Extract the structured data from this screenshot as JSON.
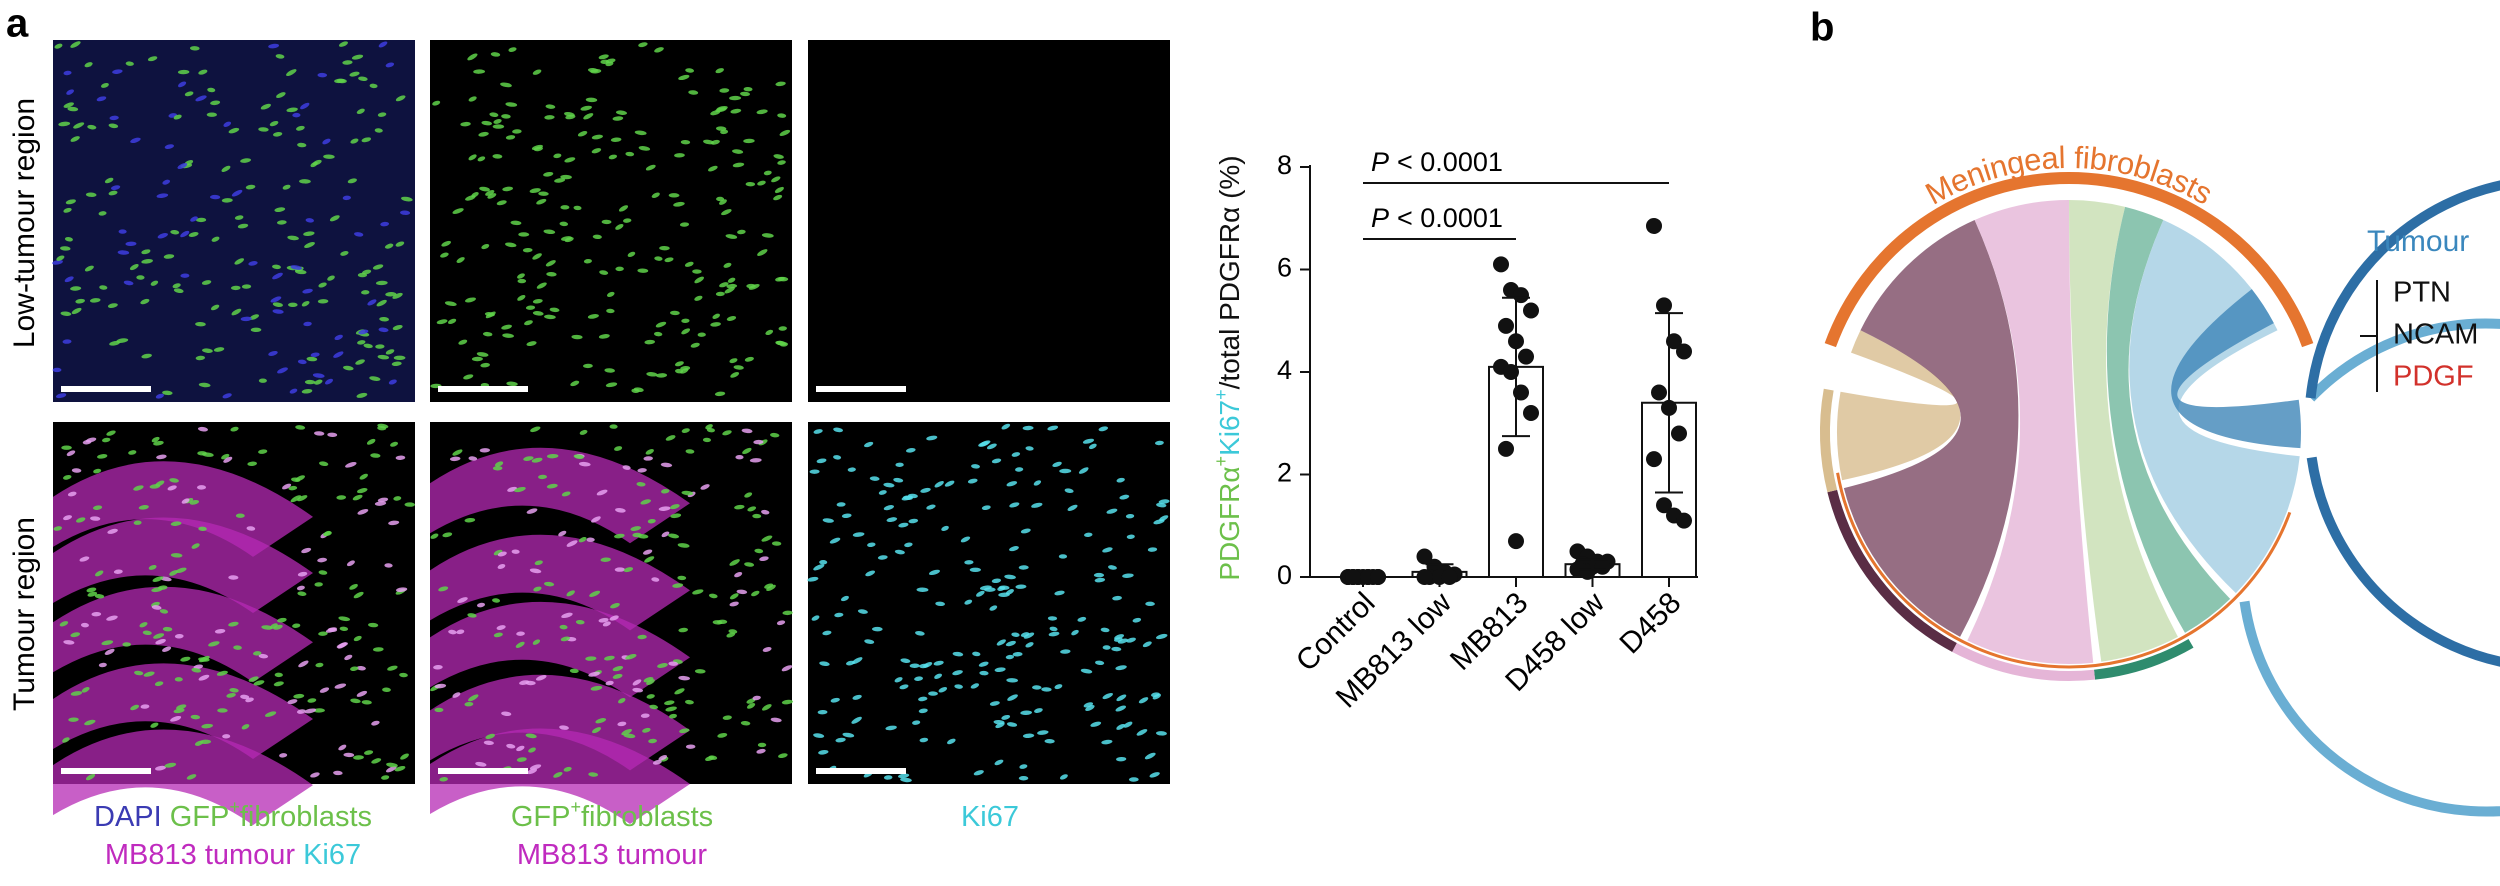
{
  "panel_a": {
    "label": "a",
    "row_labels": [
      "Low-tumour region",
      "Tumour region"
    ],
    "captions": [
      [
        [
          {
            "text": "DAPI",
            "color": "#3b3bb3"
          },
          {
            "text": "GFP",
            "color": "#6cc04a"
          },
          {
            "text": "+",
            "color": "#6cc04a",
            "sup": true
          },
          {
            "text": "fibroblasts",
            "color": "#6cc04a"
          }
        ],
        [
          {
            "text": "MB813 tumour",
            "color": "#c02bbf"
          },
          {
            "text": "Ki67",
            "color": "#3cc9d9"
          }
        ]
      ],
      [
        [
          {
            "text": "GFP",
            "color": "#6cc04a"
          },
          {
            "text": "+",
            "color": "#6cc04a",
            "sup": true
          },
          {
            "text": "fibroblasts",
            "color": "#6cc04a"
          }
        ],
        [
          {
            "text": "MB813 tumour",
            "color": "#c02bbf"
          }
        ]
      ],
      [
        [
          {
            "text": "Ki67",
            "color": "#3cc9d9"
          }
        ]
      ]
    ]
  },
  "chart_data": {
    "type": "bar",
    "categories": [
      "Control",
      "MB813 low",
      "MB813",
      "D458 low",
      "D458"
    ],
    "values": [
      0,
      0.1,
      4.1,
      0.25,
      3.4
    ],
    "errors": [
      0,
      0.15,
      1.35,
      0.1,
      1.75
    ],
    "points": [
      [
        0,
        0,
        0,
        0,
        0,
        0,
        0,
        0,
        0,
        0,
        0,
        0
      ],
      [
        0.4,
        0.2,
        0.1,
        0.05,
        0,
        0,
        0,
        0
      ],
      [
        6.1,
        5.6,
        5.5,
        5.2,
        4.9,
        4.6,
        4.3,
        4.1,
        4.0,
        3.6,
        3.2,
        2.5,
        0.7
      ],
      [
        0.5,
        0.4,
        0.3,
        0.3,
        0.25,
        0.2,
        0.2,
        0.15,
        0.1
      ],
      [
        6.85,
        5.3,
        4.6,
        4.4,
        3.6,
        3.3,
        2.8,
        2.3,
        1.4,
        1.2,
        1.1
      ]
    ],
    "color": "#ffffff",
    "ylim": [
      0,
      8
    ],
    "yticks": [
      0,
      2,
      4,
      6,
      8
    ],
    "ylabel_parts": [
      {
        "text": "PDGFRα",
        "color": "#6cc04a"
      },
      {
        "text": "+",
        "color": "#6cc04a",
        "sup": true
      },
      {
        "text": "Ki67",
        "color": "#3cc9d9"
      },
      {
        "text": "+",
        "color": "#3cc9d9",
        "sup": true
      },
      {
        "text": "/total PDGFRα (%)",
        "color": "#111111"
      }
    ],
    "significance": [
      {
        "p": "P",
        "text": "< 0.0001"
      },
      {
        "p": "P",
        "text": "< 0.0001"
      }
    ]
  },
  "panel_b": {
    "label": "b",
    "title": "Meningeal fibroblasts",
    "target": "Tumour",
    "ligands": [
      {
        "name": "PTN",
        "color": "#111111"
      },
      {
        "name": "NCAM",
        "color": "#111111"
      },
      {
        "name": "PDGF",
        "color": "#d2312b"
      }
    ]
  }
}
